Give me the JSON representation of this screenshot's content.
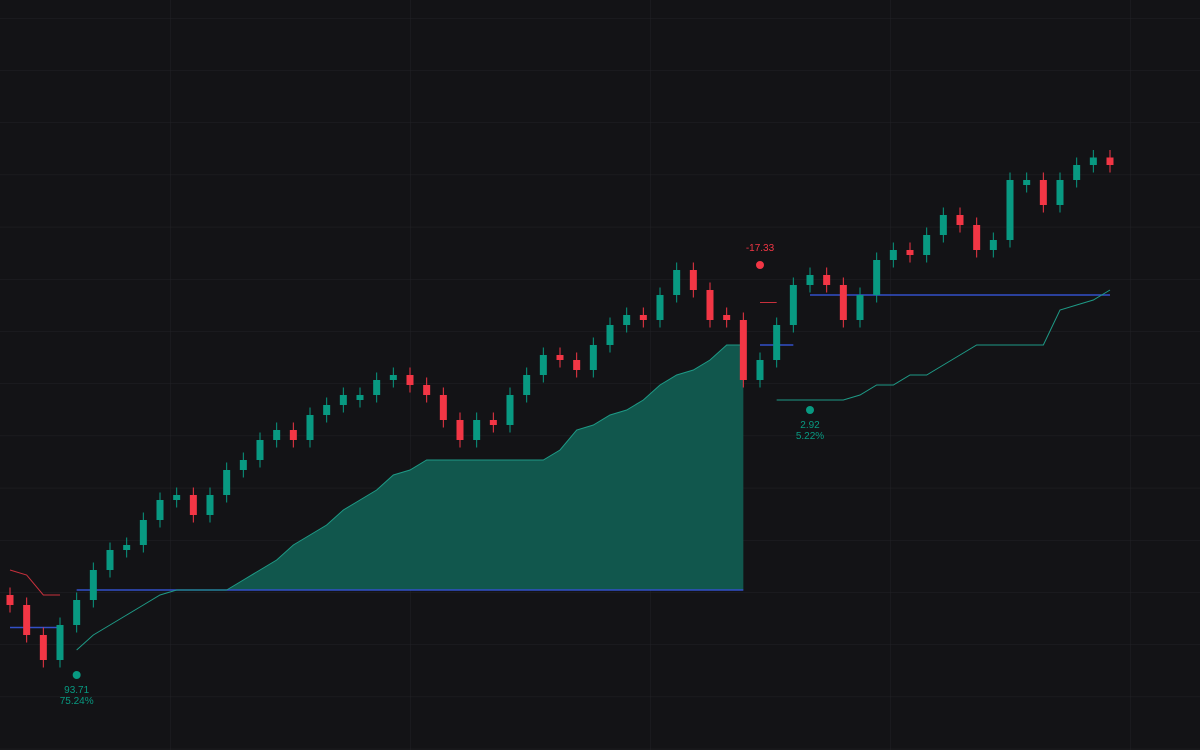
{
  "chart_data": {
    "type": "candlestick",
    "ylim": [
      50,
      350
    ],
    "up_color": "#089981",
    "down_color": "#f23645",
    "open": [
      112,
      108,
      96,
      86,
      100,
      110,
      122,
      130,
      132,
      142,
      150,
      152,
      144,
      152,
      162,
      166,
      174,
      178,
      174,
      184,
      188,
      190,
      192,
      198,
      200,
      196,
      192,
      182,
      174,
      182,
      180,
      192,
      200,
      208,
      206,
      202,
      212,
      220,
      224,
      222,
      232,
      242,
      234,
      224,
      222,
      198,
      206,
      220,
      236,
      240,
      236,
      222,
      232,
      246,
      250,
      248,
      256,
      264,
      260,
      250,
      254,
      276,
      278,
      268,
      278,
      284,
      287
    ],
    "high": [
      115,
      111,
      99,
      103,
      113,
      125,
      133,
      135,
      145,
      153,
      155,
      155,
      155,
      165,
      169,
      177,
      181,
      181,
      187,
      191,
      195,
      195,
      201,
      203,
      203,
      199,
      195,
      185,
      185,
      185,
      195,
      203,
      211,
      211,
      209,
      215,
      223,
      227,
      227,
      235,
      245,
      245,
      237,
      227,
      225,
      209,
      223,
      239,
      243,
      243,
      239,
      235,
      249,
      253,
      253,
      259,
      267,
      267,
      263,
      257,
      281,
      281,
      281,
      281,
      287,
      290,
      290
    ],
    "low": [
      105,
      93,
      83,
      83,
      97,
      107,
      119,
      127,
      129,
      139,
      147,
      141,
      141,
      149,
      159,
      163,
      171,
      171,
      171,
      181,
      185,
      187,
      189,
      195,
      193,
      189,
      179,
      171,
      171,
      177,
      177,
      189,
      197,
      203,
      199,
      199,
      209,
      217,
      219,
      219,
      229,
      231,
      219,
      219,
      195,
      195,
      203,
      217,
      233,
      233,
      219,
      219,
      229,
      243,
      245,
      245,
      253,
      257,
      247,
      247,
      251,
      273,
      265,
      265,
      275,
      281,
      281
    ],
    "close": [
      108,
      96,
      86,
      100,
      110,
      122,
      130,
      132,
      142,
      150,
      152,
      144,
      152,
      162,
      166,
      174,
      178,
      174,
      184,
      188,
      192,
      192,
      198,
      200,
      196,
      192,
      182,
      174,
      182,
      180,
      192,
      200,
      208,
      206,
      202,
      212,
      220,
      224,
      222,
      232,
      242,
      234,
      222,
      222,
      198,
      206,
      220,
      236,
      240,
      236,
      222,
      232,
      246,
      250,
      248,
      256,
      264,
      260,
      250,
      254,
      278,
      278,
      268,
      278,
      284,
      287,
      284
    ],
    "stop_lines": [
      {
        "color": "#1e9a86",
        "values": [
          null,
          null,
          null,
          null,
          90,
          96,
          100,
          104,
          108,
          112,
          114,
          114,
          114,
          114,
          118,
          122,
          126,
          132,
          136,
          140,
          146,
          150,
          154,
          160,
          162,
          166,
          166,
          166,
          166,
          166,
          166,
          166,
          166,
          170,
          178,
          180,
          184,
          186,
          190,
          196,
          200,
          202,
          206,
          212,
          212,
          null,
          190,
          190,
          190,
          190,
          190,
          192,
          196,
          196,
          200,
          200,
          204,
          208,
          212,
          212,
          212,
          212,
          212,
          226,
          228,
          230,
          234
        ]
      },
      {
        "color": "#c8303c",
        "values": [
          122,
          120,
          112,
          112,
          null,
          null,
          null,
          null,
          null,
          null,
          null,
          null,
          null,
          null,
          null,
          null,
          null,
          null,
          null,
          null,
          null,
          null,
          null,
          null,
          null,
          null,
          null,
          null,
          null,
          null,
          null,
          null,
          null,
          null,
          null,
          null,
          null,
          null,
          null,
          null,
          null,
          null,
          null,
          null,
          null,
          229,
          229,
          null,
          null,
          null,
          null,
          null,
          null,
          null,
          null,
          null,
          null,
          null,
          null,
          null,
          null,
          null,
          null,
          null,
          null,
          null,
          null
        ]
      }
    ],
    "entry_color": "#3350c8",
    "area_color": "#11574d",
    "trades": [
      {
        "side": "short",
        "start": 0,
        "end": 3,
        "entry": 99
      },
      {
        "side": "long",
        "start": 4,
        "end": 44,
        "entry": 114,
        "marker": 80,
        "result": "93.71",
        "pct": "75.24%"
      },
      {
        "side": "short",
        "start": 45,
        "end": 47,
        "entry": 212,
        "marker": 244,
        "result": "-17.33"
      },
      {
        "side": "long",
        "start": 48,
        "end": 66,
        "entry": 232,
        "marker": 186,
        "result": "2.92",
        "pct": "5.22%"
      }
    ]
  }
}
